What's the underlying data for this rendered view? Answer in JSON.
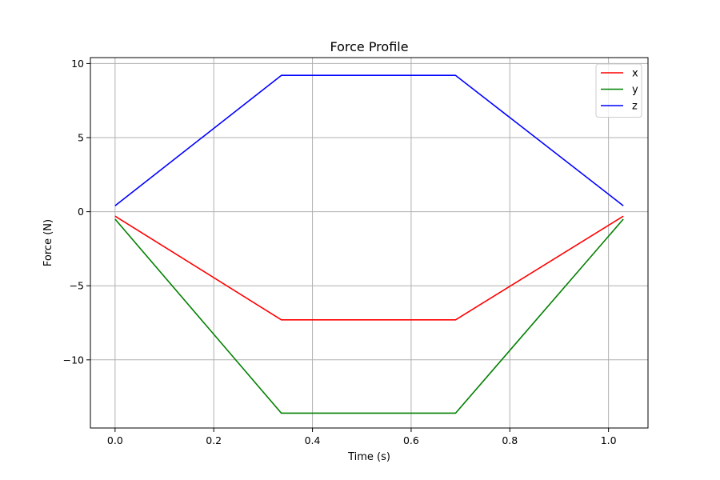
{
  "chart_data": {
    "type": "line",
    "title": "Force Profile",
    "xlabel": "Time (s)",
    "ylabel": "Force (N)",
    "xlim": [
      -0.05,
      1.08
    ],
    "ylim": [
      -14.6,
      10.4
    ],
    "xticks": [
      0.0,
      0.2,
      0.4,
      0.6,
      0.8,
      1.0
    ],
    "xtick_labels": [
      "0.0",
      "0.2",
      "0.4",
      "0.6",
      "0.8",
      "1.0"
    ],
    "yticks": [
      10,
      5,
      0,
      -5,
      -10
    ],
    "ytick_labels": [
      "10",
      "5",
      "0",
      "−5",
      "−10"
    ],
    "grid": true,
    "legend_position": "top-right",
    "series": [
      {
        "name": "x",
        "color": "#ff0000",
        "x": [
          0.0,
          0.337,
          0.69,
          1.03
        ],
        "y": [
          -0.3,
          -7.3,
          -7.3,
          -0.3
        ]
      },
      {
        "name": "y",
        "color": "#008000",
        "x": [
          0.0,
          0.337,
          0.69,
          1.03
        ],
        "y": [
          -0.5,
          -13.6,
          -13.6,
          -0.5
        ]
      },
      {
        "name": "z",
        "color": "#0000ff",
        "x": [
          0.0,
          0.337,
          0.69,
          1.03
        ],
        "y": [
          0.4,
          9.2,
          9.2,
          0.4
        ]
      }
    ]
  }
}
